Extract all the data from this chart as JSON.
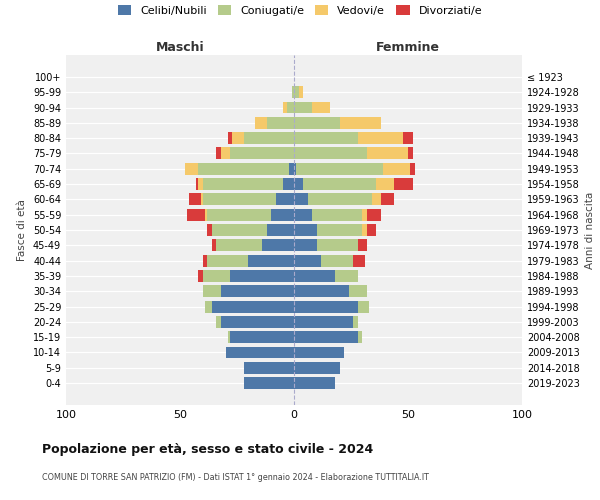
{
  "age_groups_bottom_to_top": [
    "0-4",
    "5-9",
    "10-14",
    "15-19",
    "20-24",
    "25-29",
    "30-34",
    "35-39",
    "40-44",
    "45-49",
    "50-54",
    "55-59",
    "60-64",
    "65-69",
    "70-74",
    "75-79",
    "80-84",
    "85-89",
    "90-94",
    "95-99",
    "100+"
  ],
  "birth_years_bottom_to_top": [
    "2019-2023",
    "2014-2018",
    "2009-2013",
    "2004-2008",
    "1999-2003",
    "1994-1998",
    "1989-1993",
    "1984-1988",
    "1979-1983",
    "1974-1978",
    "1969-1973",
    "1964-1968",
    "1959-1963",
    "1954-1958",
    "1949-1953",
    "1944-1948",
    "1939-1943",
    "1934-1938",
    "1929-1933",
    "1924-1928",
    "≤ 1923"
  ],
  "males_celibi_b2t": [
    22,
    22,
    30,
    28,
    32,
    36,
    32,
    28,
    20,
    14,
    12,
    10,
    8,
    5,
    2,
    0,
    0,
    0,
    0,
    0,
    0
  ],
  "males_coniugati_b2t": [
    0,
    0,
    0,
    1,
    2,
    3,
    8,
    12,
    18,
    20,
    24,
    28,
    32,
    35,
    40,
    28,
    22,
    12,
    3,
    1,
    0
  ],
  "males_vedovi_b2t": [
    0,
    0,
    0,
    0,
    0,
    0,
    0,
    0,
    0,
    0,
    0,
    1,
    1,
    2,
    6,
    4,
    5,
    5,
    2,
    0,
    0
  ],
  "males_divorziati_b2t": [
    0,
    0,
    0,
    0,
    0,
    0,
    0,
    2,
    2,
    2,
    2,
    8,
    5,
    1,
    0,
    2,
    2,
    0,
    0,
    0,
    0
  ],
  "females_nubili_b2t": [
    18,
    20,
    22,
    28,
    26,
    28,
    24,
    18,
    12,
    10,
    10,
    8,
    6,
    4,
    1,
    0,
    0,
    0,
    0,
    0,
    0
  ],
  "females_coniugate_b2t": [
    0,
    0,
    0,
    2,
    2,
    5,
    8,
    10,
    14,
    18,
    20,
    22,
    28,
    32,
    38,
    32,
    28,
    20,
    8,
    2,
    0
  ],
  "females_vedove_b2t": [
    0,
    0,
    0,
    0,
    0,
    0,
    0,
    0,
    0,
    0,
    2,
    2,
    4,
    8,
    12,
    18,
    20,
    18,
    8,
    2,
    0
  ],
  "females_divorziate_b2t": [
    0,
    0,
    0,
    0,
    0,
    0,
    0,
    0,
    5,
    4,
    4,
    6,
    6,
    8,
    2,
    2,
    4,
    0,
    0,
    0,
    0
  ],
  "color_celibi": "#4e78a8",
  "color_coniugati": "#b5cb8b",
  "color_vedovi": "#f5c96a",
  "color_divorziati": "#d93b3b",
  "bg_color": "#f0f0f0",
  "xlim": 100,
  "title": "Popolazione per età, sesso e stato civile - 2024",
  "subtitle": "COMUNE DI TORRE SAN PATRIZIO (FM) - Dati ISTAT 1° gennaio 2024 - Elaborazione TUTTITALIA.IT",
  "ylabel_left": "Fasce di età",
  "ylabel_right": "Anni di nascita",
  "label_maschi": "Maschi",
  "label_femmine": "Femmine"
}
